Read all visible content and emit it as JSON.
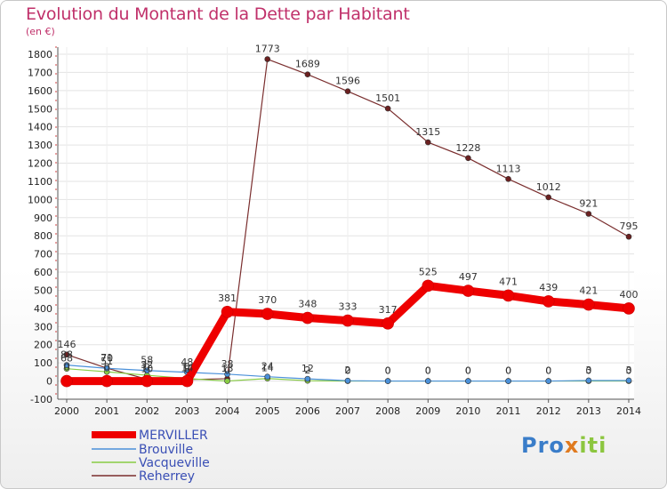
{
  "title": "Evolution du Montant de la Dette par Habitant",
  "subtitle": "(en €)",
  "logo": {
    "text_p": "Pro",
    "text_x": "x",
    "text_iti": "iti"
  },
  "chart_data": {
    "type": "line",
    "x": [
      "2000",
      "2001",
      "2002",
      "2003",
      "2004",
      "2005",
      "2006",
      "2007",
      "2008",
      "2009",
      "2010",
      "2011",
      "2012",
      "2013",
      "2014"
    ],
    "ylim": [
      -100,
      1800
    ],
    "yticks": [
      -100,
      0,
      100,
      200,
      300,
      400,
      500,
      600,
      700,
      800,
      900,
      1000,
      1100,
      1200,
      1300,
      1400,
      1500,
      1600,
      1700,
      1800
    ],
    "legend_position": "bottom-left",
    "series": [
      {
        "name": "MERVILLER",
        "color": "#ee0000",
        "values": [
          0,
          0,
          0,
          0,
          381,
          370,
          348,
          333,
          317,
          525,
          497,
          471,
          439,
          421,
          400
        ],
        "labels": [
          "0",
          "0",
          "0",
          "0",
          "381",
          "370",
          "348",
          "333",
          "317",
          "525",
          "497",
          "471",
          "439",
          "421",
          "400"
        ]
      },
      {
        "name": "Brouville",
        "color": "#4a90d9",
        "values": [
          88,
          70,
          58,
          48,
          38,
          24,
          12,
          2,
          0,
          0,
          0,
          0,
          0,
          3,
          3
        ],
        "labels": [
          "88",
          "70",
          "58",
          "48",
          "38",
          "24",
          "12",
          "2",
          "0",
          "0",
          "0",
          "0",
          "0",
          "3",
          "3"
        ]
      },
      {
        "name": "Vacqueville",
        "color": "#88cc44",
        "values": [
          68,
          51,
          32,
          14,
          0,
          14,
          2,
          0,
          0,
          0,
          0,
          0,
          0,
          0,
          0
        ],
        "labels": [
          "68",
          "51",
          "32",
          "14",
          "0",
          "14",
          "2",
          "0",
          "0",
          "0",
          "0",
          "0",
          "0",
          "0",
          "0"
        ]
      },
      {
        "name": "Reherrey",
        "color": "#7a2e2e",
        "values": [
          146,
          71,
          10,
          8,
          13,
          1773,
          1689,
          1596,
          1501,
          1315,
          1228,
          1113,
          1012,
          921,
          795
        ],
        "labels": [
          "146",
          "71",
          "10",
          "8",
          "13",
          "1773",
          "1689",
          "1596",
          "1501",
          "1315",
          "1228",
          "1113",
          "1012",
          "921",
          "795"
        ]
      }
    ]
  }
}
